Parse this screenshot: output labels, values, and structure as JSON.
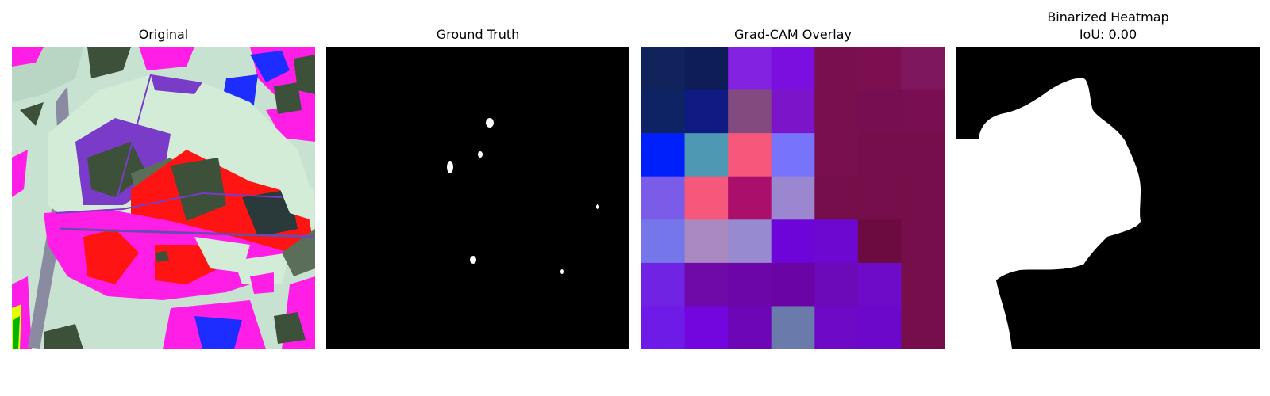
{
  "panels": [
    {
      "title": "Original"
    },
    {
      "title": "Ground Truth"
    },
    {
      "title": "Grad-CAM Overlay"
    },
    {
      "title": "Binarized Heatmap",
      "subtitle": "IoU: 0.00"
    }
  ],
  "gradcam": {
    "grid_rows": 7,
    "grid_cols": 7,
    "colors": [
      [
        "#10235b",
        "#0e1c57",
        "#8323e1",
        "#7a0fe0",
        "#7a0f4e",
        "#7b0f4f",
        "#7f175f"
      ],
      [
        "#0d2363",
        "#0f1b82",
        "#824a7f",
        "#7c15c9",
        "#7a0f4e",
        "#780e52",
        "#790f52"
      ],
      [
        "#0020fb",
        "#4f98b3",
        "#f5587a",
        "#7773fb",
        "#7a0f4e",
        "#760e4b",
        "#760e4c"
      ],
      [
        "#7b5ce8",
        "#f5587a",
        "#ab0f6c",
        "#9a87d0",
        "#760e4b",
        "#760e4b",
        "#760e4b"
      ],
      [
        "#7476ea",
        "#a989c0",
        "#988ad0",
        "#6d04d8",
        "#6c08cf",
        "#6c0b40",
        "#760e4b"
      ],
      [
        "#7123e3",
        "#6f0aa8",
        "#6c06a8",
        "#6b04a4",
        "#6c09b8",
        "#6e0bc9",
        "#760e4b"
      ],
      [
        "#6e1be7",
        "#7305de",
        "#6d06b7",
        "#6a7bab",
        "#6e09c7",
        "#6c08c9",
        "#760e4b"
      ]
    ]
  },
  "original": {
    "palette": {
      "background": "#c8e2d2",
      "magenta": "#ff1ee6",
      "red": "#ff1414",
      "blue": "#1e2dff",
      "dark_green": "#3c503a",
      "leaf_light": "#d2ecd8",
      "purple": "#7a3cc8",
      "vein_gray": "#8a8aa0"
    }
  },
  "ground_truth": {
    "background": "#000000",
    "mask_color": "#ffffff"
  },
  "binarized": {
    "background": "#000000",
    "mask_color": "#ffffff"
  }
}
